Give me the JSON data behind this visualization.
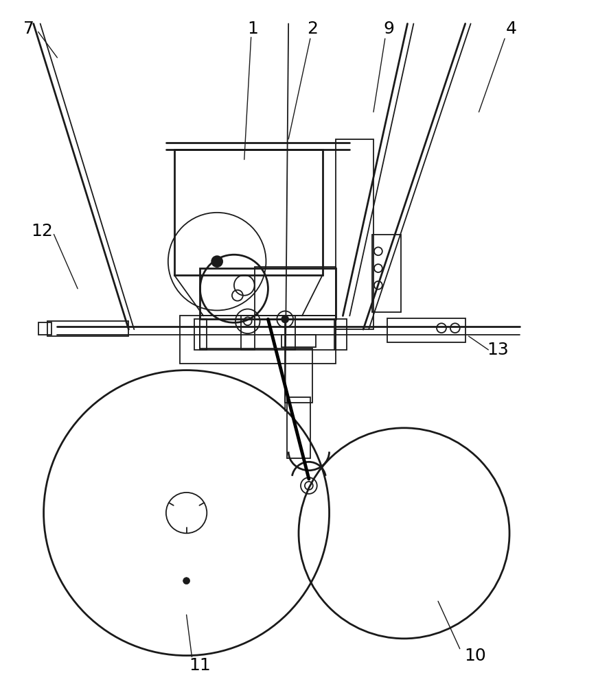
{
  "bg_color": "#ffffff",
  "lc": "#1a1a1a",
  "lw": 1.3,
  "lw2": 2.0,
  "lw3": 3.5,
  "label_fontsize": 18,
  "figsize": [
    8.71,
    10.0
  ],
  "dpi": 100
}
